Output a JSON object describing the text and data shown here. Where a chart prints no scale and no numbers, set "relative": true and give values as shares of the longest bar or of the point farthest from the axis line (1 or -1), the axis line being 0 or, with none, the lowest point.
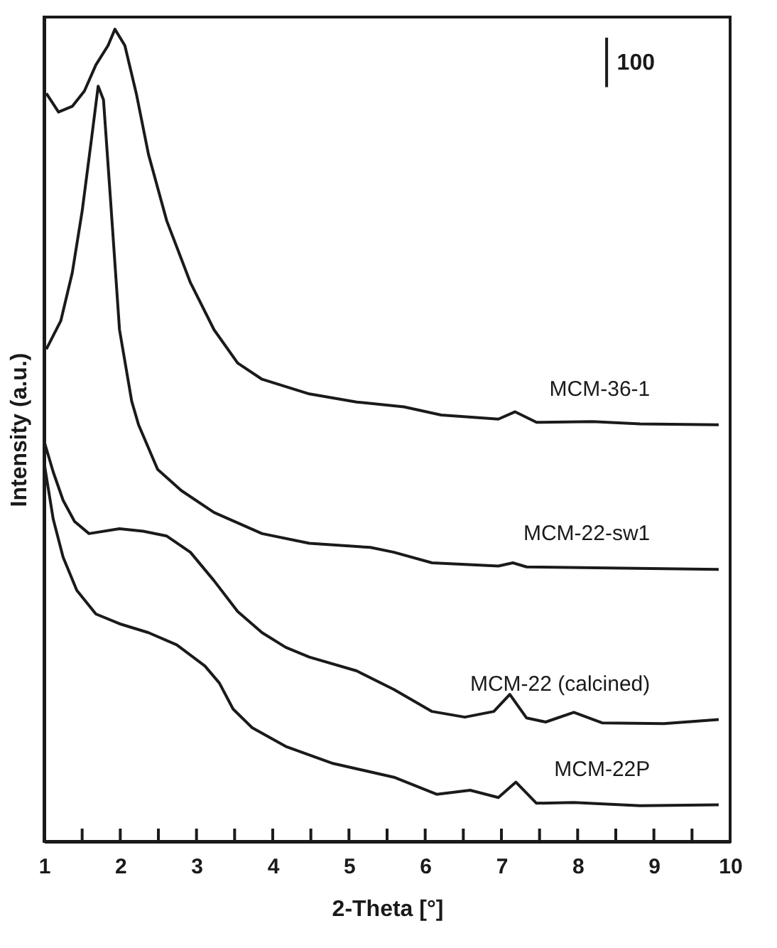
{
  "chart_data": {
    "type": "line",
    "relative": true,
    "xlabel": "2-Theta [°]",
    "ylabel": "Intensity (a.u.)",
    "xlim": [
      1,
      10
    ],
    "xticks": [
      1,
      {
        "value": 1.5,
        "label": null
      },
      2,
      {
        "value": 2.5,
        "label": null
      },
      3,
      {
        "value": 3.5,
        "label": null
      },
      4,
      {
        "value": 4.5,
        "label": null
      },
      5,
      {
        "value": 5.5,
        "label": null
      },
      6,
      {
        "value": 6.5,
        "label": null
      },
      7,
      {
        "value": 7.5,
        "label": null
      },
      8,
      {
        "value": 8.5,
        "label": null
      },
      9,
      {
        "value": 9.5,
        "label": null
      },
      10
    ],
    "grid": false,
    "legend": false,
    "marker": "none",
    "line_style": "solid",
    "annotations": [
      "100"
    ],
    "series": [
      {
        "name": "MCM-36-1",
        "color": "#1a1a1a",
        "x": [
          1.03,
          1.19,
          1.37,
          1.53,
          1.68,
          1.84,
          1.93,
          2.06,
          2.21,
          2.37,
          2.61,
          2.92,
          3.23,
          3.54,
          3.86,
          4.48,
          5.1,
          5.72,
          6.21,
          6.96,
          7.18,
          7.46,
          8.2,
          8.82,
          9.85
        ],
        "values": [
          0.921,
          0.898,
          0.905,
          0.924,
          0.956,
          0.98,
          1.0,
          0.98,
          0.921,
          0.846,
          0.764,
          0.688,
          0.63,
          0.589,
          0.569,
          0.551,
          0.541,
          0.535,
          0.525,
          0.52,
          0.529,
          0.516,
          0.517,
          0.514,
          0.513
        ]
      },
      {
        "name": "MCM-22-sw1",
        "color": "#1a1a1a",
        "x": [
          1.03,
          1.22,
          1.37,
          1.5,
          1.62,
          1.71,
          1.78,
          1.87,
          1.99,
          2.15,
          2.24,
          2.49,
          2.8,
          3.23,
          3.86,
          4.48,
          5.28,
          5.59,
          6.09,
          6.96,
          7.15,
          7.33,
          9.85
        ],
        "values": [
          0.606,
          0.641,
          0.7,
          0.776,
          0.863,
          0.93,
          0.913,
          0.793,
          0.63,
          0.542,
          0.513,
          0.458,
          0.432,
          0.405,
          0.379,
          0.367,
          0.362,
          0.356,
          0.343,
          0.339,
          0.343,
          0.338,
          0.335
        ]
      },
      {
        "name": "MCM-22 (calcined)",
        "color": "#1a1a1a",
        "x": [
          1.01,
          1.12,
          1.25,
          1.4,
          1.59,
          1.99,
          2.3,
          2.61,
          2.92,
          3.23,
          3.54,
          3.86,
          4.17,
          4.48,
          5.1,
          5.59,
          6.09,
          6.52,
          6.9,
          7.11,
          7.33,
          7.58,
          7.95,
          8.32,
          9.13,
          9.85
        ],
        "values": [
          0.49,
          0.455,
          0.42,
          0.394,
          0.379,
          0.385,
          0.382,
          0.376,
          0.356,
          0.321,
          0.283,
          0.257,
          0.239,
          0.227,
          0.21,
          0.187,
          0.16,
          0.153,
          0.16,
          0.181,
          0.152,
          0.147,
          0.159,
          0.146,
          0.145,
          0.15
        ]
      },
      {
        "name": "MCM-22P",
        "color": "#1a1a1a",
        "x": [
          1.01,
          1.12,
          1.25,
          1.43,
          1.68,
          1.99,
          2.37,
          2.74,
          3.11,
          3.3,
          3.48,
          3.73,
          4.17,
          4.79,
          5.59,
          6.15,
          6.59,
          6.96,
          7.19,
          7.46,
          7.95,
          8.82,
          9.85
        ],
        "values": [
          0.461,
          0.397,
          0.35,
          0.309,
          0.28,
          0.268,
          0.257,
          0.242,
          0.216,
          0.195,
          0.163,
          0.14,
          0.117,
          0.096,
          0.079,
          0.058,
          0.063,
          0.054,
          0.073,
          0.047,
          0.048,
          0.044,
          0.045
        ]
      }
    ]
  }
}
